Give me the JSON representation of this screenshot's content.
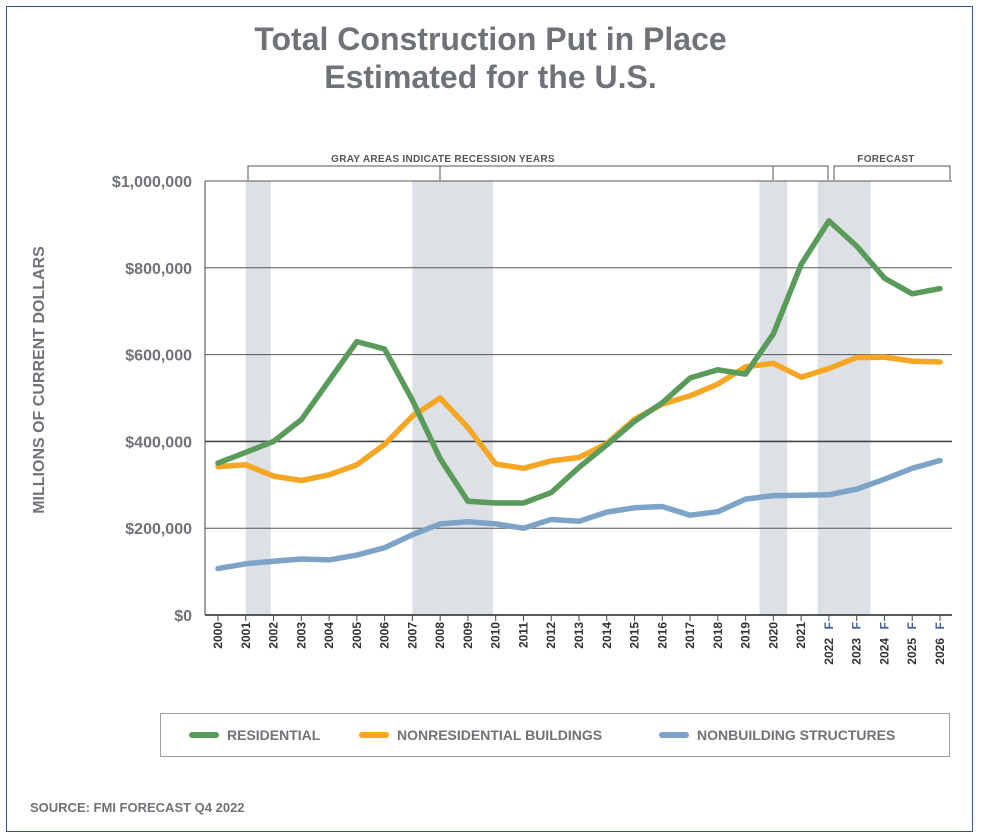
{
  "title_line1": "Total Construction Put in Place",
  "title_line2": "Estimated for the U.S.",
  "recession_note": "GRAY AREAS INDICATE RECESSION YEARS",
  "forecast_note": "FORECAST",
  "source": "SOURCE: FMI FORECAST Q4 2022",
  "colors": {
    "residential": "#5a9a5a",
    "nonresidential": "#f5a623",
    "nonbuilding": "#7ea3c8",
    "shade": "#dde1e6",
    "grid": "#5a5a5a",
    "text": "#6f7378"
  },
  "chart_data": {
    "type": "line",
    "title": "Total Construction Put in Place Estimated for the U.S.",
    "ylabel": "MILLIONS OF CURRENT DOLLARS",
    "xlabel": "",
    "ylim": [
      0,
      1000000
    ],
    "yticks": [
      0,
      200000,
      400000,
      600000,
      800000,
      1000000
    ],
    "ytick_labels": [
      "$0",
      "$200,000",
      "$400,000",
      "$600,000",
      "$800,000",
      "$1,000,000"
    ],
    "categories": [
      "2000",
      "2001",
      "2002",
      "2003",
      "2004",
      "2005",
      "2006",
      "2007",
      "2008",
      "2009",
      "2010",
      "2011",
      "2012",
      "2013",
      "2014",
      "2015",
      "2016",
      "2017",
      "2018",
      "2019",
      "2020",
      "2021",
      "2022",
      "2023",
      "2024",
      "2025",
      "2026"
    ],
    "forecast_flags": [
      "",
      "",
      "",
      "",
      "",
      "",
      "",
      "",
      "",
      "",
      "",
      "",
      "",
      "",
      "",
      "",
      "",
      "",
      "",
      "",
      "",
      "",
      "F",
      "F",
      "F",
      "F",
      "F"
    ],
    "recession_periods": [
      [
        2001.0,
        2001.9
      ],
      [
        2007.0,
        2009.9
      ],
      [
        2019.5,
        2020.5
      ],
      [
        2021.6,
        2023.5
      ]
    ],
    "grid": true,
    "series": [
      {
        "name": "RESIDENTIAL",
        "color_key": "residential",
        "values": [
          350000,
          375000,
          400000,
          450000,
          540000,
          630000,
          613000,
          495000,
          360000,
          262000,
          258000,
          258000,
          282000,
          340000,
          392000,
          446000,
          489000,
          546000,
          565000,
          555000,
          648000,
          808000,
          908000,
          850000,
          776000,
          740000,
          752000
        ]
      },
      {
        "name": "NONRESIDENTIAL BUILDINGS",
        "color_key": "nonresidential",
        "values": [
          342000,
          346000,
          320000,
          310000,
          323000,
          346000,
          393000,
          458000,
          500000,
          432000,
          348000,
          338000,
          355000,
          363000,
          395000,
          451000,
          486000,
          505000,
          532000,
          572000,
          580000,
          548000,
          568000,
          593000,
          594000,
          585000,
          583000
        ]
      },
      {
        "name": "NONBUILDING STRUCTURES",
        "color_key": "nonbuilding",
        "values": [
          107000,
          118000,
          124000,
          129000,
          127000,
          138000,
          155000,
          185000,
          210000,
          215000,
          210000,
          200000,
          220000,
          216000,
          237000,
          247000,
          250000,
          230000,
          238000,
          267000,
          275000,
          276000,
          277000,
          290000,
          313000,
          338000,
          356000
        ]
      }
    ],
    "legend_position": "bottom"
  }
}
